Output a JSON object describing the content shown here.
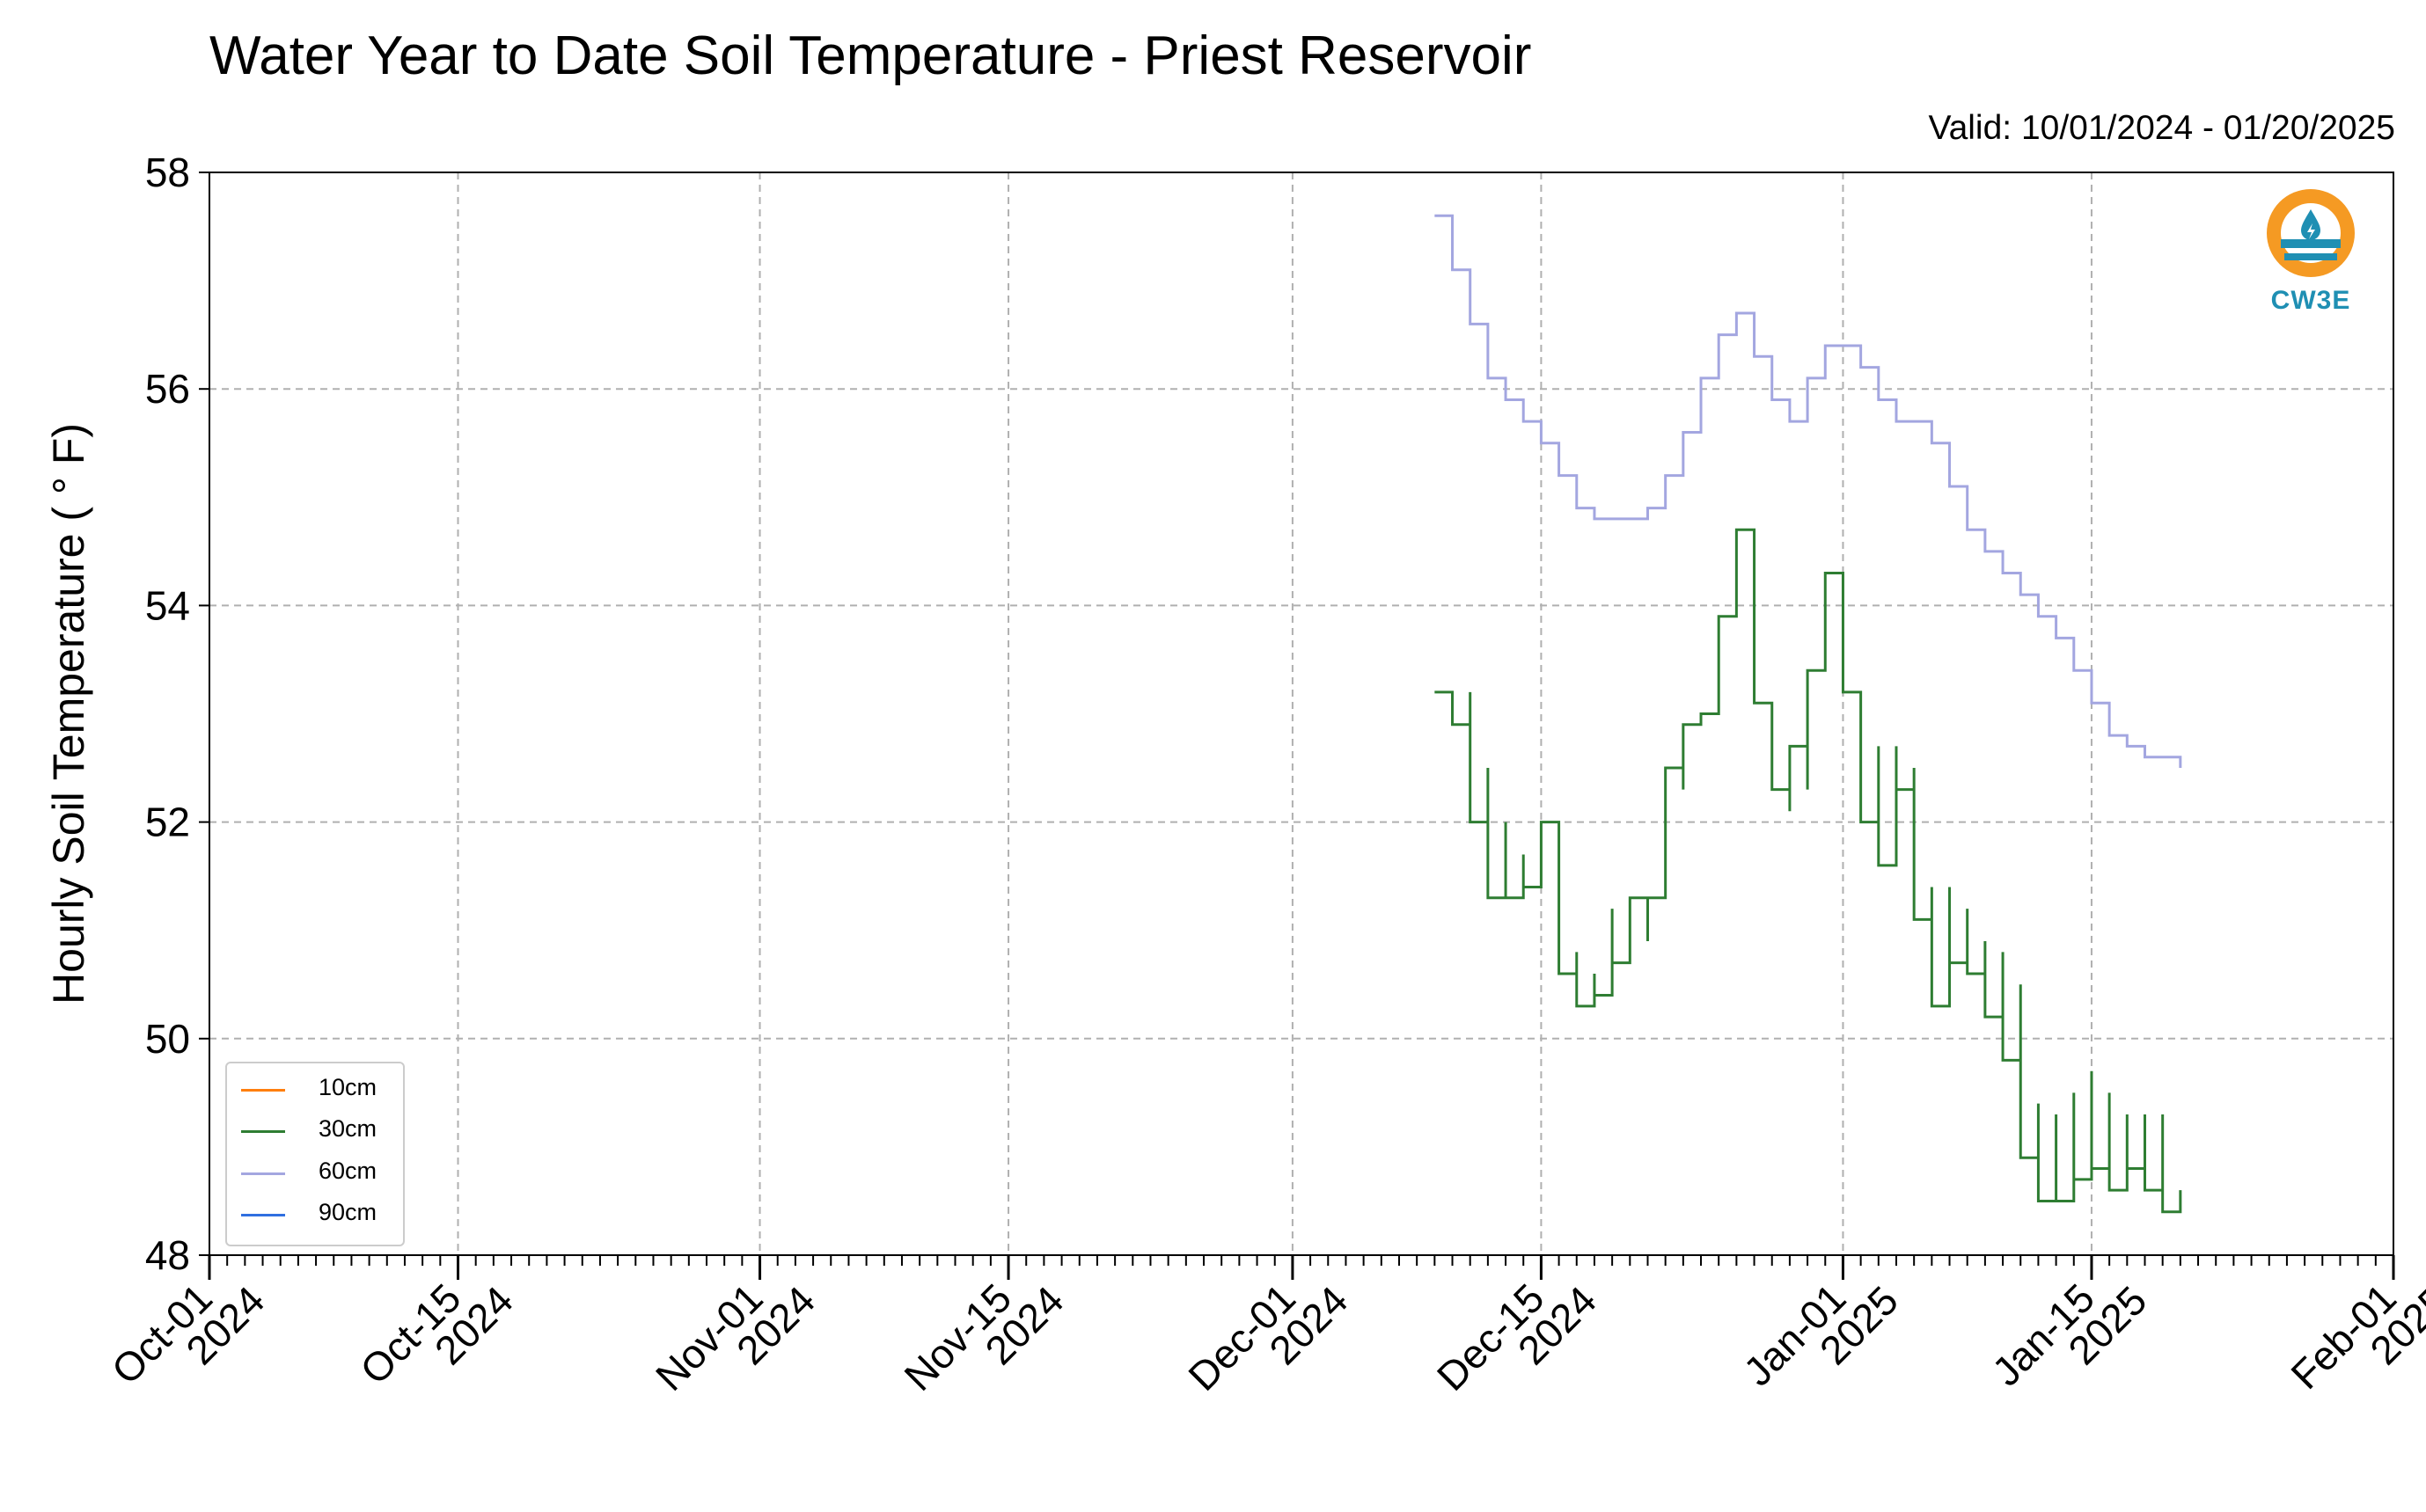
{
  "title": "Water Year to Date Soil Temperature - Priest Reservoir",
  "valid": "Valid: 10/01/2024 - 01/20/2025",
  "logo_text": "CW3E",
  "colors": {
    "logo_orange": "#f59a23",
    "logo_blue": "#1f8fb3",
    "grid": "#b0b0b0"
  },
  "chart_data": {
    "type": "line",
    "title": "Water Year to Date Soil Temperature - Priest Reservoir",
    "ylabel": "Hourly Soil Temperature ( ° F)",
    "xlabel": "",
    "ylim": [
      48,
      58
    ],
    "xlim": [
      "2024-10-01",
      "2025-02-01"
    ],
    "yticks": [
      "48",
      "50",
      "52",
      "54",
      "56",
      "58"
    ],
    "xticks": [
      {
        "date": "2024-10-01",
        "line1": "Oct-01",
        "line2": "2024"
      },
      {
        "date": "2024-10-15",
        "line1": "Oct-15",
        "line2": "2024"
      },
      {
        "date": "2024-11-01",
        "line1": "Nov-01",
        "line2": "2024"
      },
      {
        "date": "2024-11-15",
        "line1": "Nov-15",
        "line2": "2024"
      },
      {
        "date": "2024-12-01",
        "line1": "Dec-01",
        "line2": "2024"
      },
      {
        "date": "2024-12-15",
        "line1": "Dec-15",
        "line2": "2024"
      },
      {
        "date": "2025-01-01",
        "line1": "Jan-01",
        "line2": "2025"
      },
      {
        "date": "2025-01-15",
        "line1": "Jan-15",
        "line2": "2025"
      },
      {
        "date": "2025-02-01",
        "line1": "Feb-01",
        "line2": "2025"
      }
    ],
    "grid": true,
    "legend_position": "lower-left",
    "series": [
      {
        "name": "10cm",
        "color": "#ff7f0e",
        "x": [],
        "y": []
      },
      {
        "name": "30cm",
        "color": "#2e7d32",
        "x": [
          "2024-12-09",
          "2024-12-10",
          "2024-12-11",
          "2024-12-11",
          "2024-12-12",
          "2024-12-12",
          "2024-12-13",
          "2024-12-13",
          "2024-12-14",
          "2024-12-14",
          "2024-12-15",
          "2024-12-16",
          "2024-12-16",
          "2024-12-17",
          "2024-12-17",
          "2024-12-18",
          "2024-12-18",
          "2024-12-19",
          "2024-12-19",
          "2024-12-20",
          "2024-12-21",
          "2024-12-21",
          "2024-12-22",
          "2024-12-22",
          "2024-12-23",
          "2024-12-23",
          "2024-12-24",
          "2024-12-25",
          "2024-12-26",
          "2024-12-27",
          "2024-12-27",
          "2024-12-28",
          "2024-12-29",
          "2024-12-29",
          "2024-12-30",
          "2024-12-30",
          "2024-12-31",
          "2025-01-01",
          "2025-01-01",
          "2025-01-02",
          "2025-01-02",
          "2025-01-03",
          "2025-01-03",
          "2025-01-04",
          "2025-01-04",
          "2025-01-05",
          "2025-01-05",
          "2025-01-06",
          "2025-01-06",
          "2025-01-07",
          "2025-01-07",
          "2025-01-08",
          "2025-01-08",
          "2025-01-09",
          "2025-01-09",
          "2025-01-10",
          "2025-01-10",
          "2025-01-11",
          "2025-01-11",
          "2025-01-12",
          "2025-01-12",
          "2025-01-13",
          "2025-01-13",
          "2025-01-14",
          "2025-01-14",
          "2025-01-15",
          "2025-01-15",
          "2025-01-16",
          "2025-01-16",
          "2025-01-17",
          "2025-01-17",
          "2025-01-18",
          "2025-01-18",
          "2025-01-19",
          "2025-01-19",
          "2025-01-20"
        ],
        "y": [
          53.2,
          52.9,
          53.2,
          52.0,
          52.5,
          51.3,
          52.0,
          51.3,
          51.7,
          51.4,
          52.0,
          51.8,
          50.6,
          50.8,
          50.3,
          50.6,
          50.4,
          51.2,
          50.7,
          51.3,
          50.9,
          51.3,
          52.0,
          52.5,
          52.3,
          52.9,
          53.0,
          53.9,
          54.7,
          54.0,
          53.1,
          52.3,
          52.1,
          52.7,
          52.3,
          53.4,
          54.3,
          53.9,
          53.2,
          53.1,
          52.0,
          52.7,
          51.6,
          52.7,
          52.3,
          52.5,
          51.1,
          51.4,
          50.3,
          51.4,
          50.7,
          51.2,
          50.6,
          50.9,
          50.2,
          50.8,
          49.8,
          50.5,
          48.9,
          49.4,
          48.5,
          49.3,
          48.5,
          49.5,
          48.7,
          49.7,
          48.8,
          49.5,
          48.6,
          49.3,
          48.8,
          49.3,
          48.6,
          49.3,
          48.4,
          48.6
        ]
      },
      {
        "name": "60cm",
        "color": "#a3a6e0",
        "x": [
          "2024-12-09",
          "2024-12-10",
          "2024-12-11",
          "2024-12-12",
          "2024-12-13",
          "2024-12-14",
          "2024-12-15",
          "2024-12-16",
          "2024-12-17",
          "2024-12-18",
          "2024-12-19",
          "2024-12-20",
          "2024-12-21",
          "2024-12-22",
          "2024-12-23",
          "2024-12-24",
          "2024-12-25",
          "2024-12-26",
          "2024-12-27",
          "2024-12-28",
          "2024-12-29",
          "2024-12-30",
          "2024-12-31",
          "2025-01-01",
          "2025-01-02",
          "2025-01-03",
          "2025-01-04",
          "2025-01-05",
          "2025-01-06",
          "2025-01-07",
          "2025-01-08",
          "2025-01-09",
          "2025-01-10",
          "2025-01-11",
          "2025-01-12",
          "2025-01-13",
          "2025-01-14",
          "2025-01-15",
          "2025-01-16",
          "2025-01-17",
          "2025-01-18",
          "2025-01-19",
          "2025-01-20"
        ],
        "y": [
          57.6,
          57.1,
          56.6,
          56.1,
          55.9,
          55.7,
          55.5,
          55.2,
          54.9,
          54.8,
          54.8,
          54.8,
          54.9,
          55.2,
          55.6,
          56.1,
          56.5,
          56.7,
          56.3,
          55.9,
          55.7,
          56.1,
          56.4,
          56.4,
          56.2,
          55.9,
          55.7,
          55.7,
          55.5,
          55.1,
          54.7,
          54.5,
          54.3,
          54.1,
          53.9,
          53.7,
          53.4,
          53.1,
          52.8,
          52.7,
          52.6,
          52.6,
          52.5
        ]
      },
      {
        "name": "90cm",
        "color": "#2f6fe0",
        "x": [],
        "y": []
      }
    ]
  }
}
